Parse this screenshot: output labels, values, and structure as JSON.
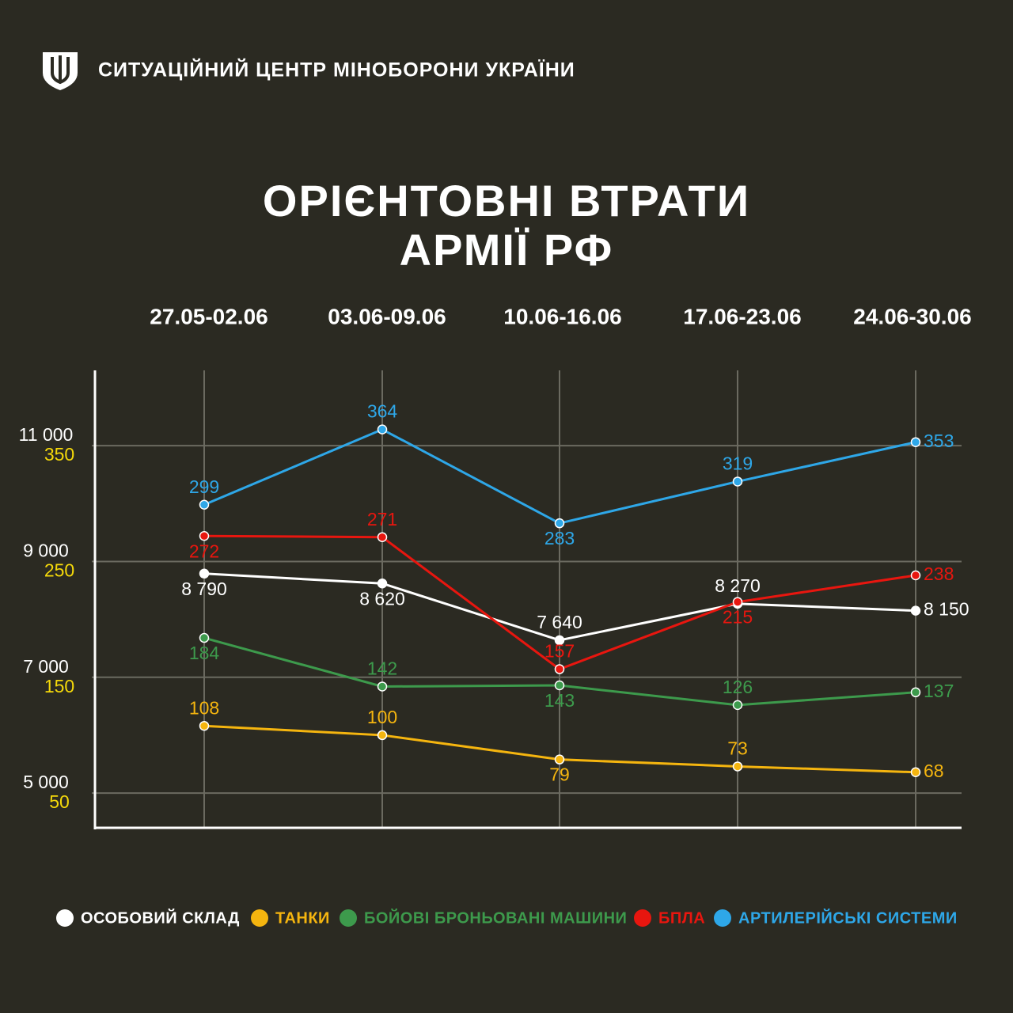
{
  "header": {
    "org": "СИТУАЦІЙНИЙ ЦЕНТР МІНОБОРОНИ УКРАЇНИ"
  },
  "chart_data": {
    "type": "line",
    "title": [
      "ОРІЄНТОВНІ ВТРАТИ",
      "АРМІЇ РФ"
    ],
    "categories": [
      "27.05-02.06",
      "03.06-09.06",
      "10.06-16.06",
      "17.06-23.06",
      "24.06-30.06"
    ],
    "ylim": [
      4400,
      12300
    ],
    "yticks": [
      {
        "value": 5000,
        "label": "5 000"
      },
      {
        "value": 7000,
        "label": "7 000"
      },
      {
        "value": 9000,
        "label": "9 000"
      },
      {
        "value": 11000,
        "label": "11 000"
      }
    ],
    "y2lim": [
      20,
      415
    ],
    "y2ticks": [
      50,
      150,
      250,
      350
    ],
    "y2tick_color": "#f5d90a",
    "grid": true,
    "series": [
      {
        "name": "ОСОБОВИЙ СКЛАД",
        "color": "#ffffff",
        "values": [
          8790,
          8620,
          7640,
          8270,
          8150
        ],
        "value_labels": [
          "8 790",
          "8 620",
          "7 640",
          "8 270",
          "8 150"
        ]
      },
      {
        "name": "ТАНКИ",
        "color": "#f5b50f",
        "axis": "y2",
        "values": [
          108,
          100,
          79,
          73,
          68
        ]
      },
      {
        "name": "БОЙОВІ БРОНЬОВАНІ МАШИНИ",
        "color": "#3d9a4c",
        "axis": "y2",
        "values": [
          184,
          142,
          143,
          126,
          137
        ]
      },
      {
        "name": "БПЛА",
        "color": "#e8160f",
        "axis": "y2",
        "values": [
          272,
          271,
          157,
          215,
          238
        ]
      },
      {
        "name": "АРТИЛЕРІЙСЬКІ СИСТЕМИ",
        "color": "#2ea7e8",
        "axis": "y2",
        "values": [
          299,
          364,
          283,
          319,
          353
        ]
      }
    ]
  }
}
